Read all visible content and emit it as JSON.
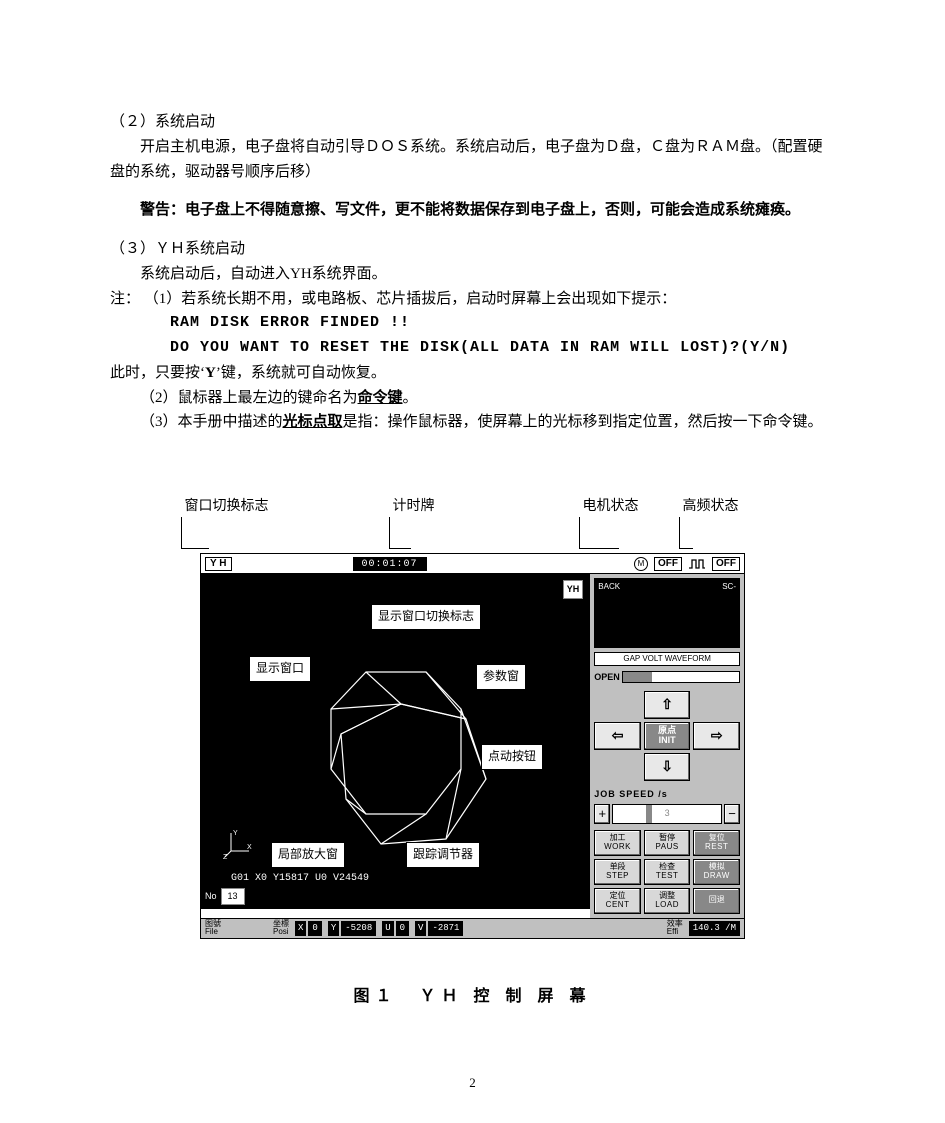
{
  "doc": {
    "s2_head": "（２）系统启动",
    "s2_p1": "开启主机电源，电子盘将自动引导ＤＯＳ系统。系统启动后，电子盘为Ｄ盘，Ｃ盘为ＲＡＭ盘。（配置硬盘的系统，驱动器号顺序后移）",
    "warn": "警告：电子盘上不得随意擦、写文件，更不能将数据保存到电子盘上，否则，可能会造成系统瘫痪。",
    "s3_head": "（３）ＹＨ系统启动",
    "s3_p1": "系统启动后，自动进入YH系统界面。",
    "note_label": "注：",
    "note1": "（1）若系统长期不用，或电路板、芯片插拔后，启动时屏幕上会出现如下提示：",
    "err1": "RAM   DISK   ERROR   FINDED   !!",
    "err2": "DO YOU WANT TO RESET THE DISK(ALL DATA IN RAM WILL LOST)?(Y/N)",
    "s3_p2a": "此时，只要按‘",
    "s3_p2_key": "Y",
    "s3_p2b": "’键，系统就可自动恢复。",
    "note2a": "（2）鼠标器上最左边的键命名为",
    "note2b": "命令键",
    "note2c": "。",
    "note3a": "（3）本手册中描述的",
    "note3b": "光标点取",
    "note3c": "是指：操作鼠标器，使屏幕上的光标移到指定位置，然后按一下命令键。"
  },
  "labels": {
    "l1": "窗口切换标志",
    "l2": "计时牌",
    "l3": "电机状态",
    "l4": "高频状态"
  },
  "canvas_annots": {
    "a1": "显示窗口切换标志",
    "a2": "显示窗口",
    "a3": "参数窗",
    "a4": "点动按钮",
    "a5": "局部放大窗",
    "a6": "跟踪调节器"
  },
  "titlebar": {
    "logo": "Y H",
    "timer": "00:01:07",
    "motor_icon": "M",
    "off1": "OFF",
    "off2": "OFF"
  },
  "canvas": {
    "mini_logo": "YH",
    "code": "G01 X0 Y15817 U0 V24549",
    "no_label": "No",
    "no_value": "13"
  },
  "scope": {
    "back": "BACK",
    "sc": "SC-",
    "waveform": "GAP VOLT WAVEFORM"
  },
  "open": {
    "label": "OPEN"
  },
  "jog": {
    "up": "⇧",
    "down": "⇩",
    "left": "⇦",
    "right": "⇨",
    "init_cn": "原点",
    "init_en": "INIT"
  },
  "speed": {
    "label": "JOB SPEED /s",
    "plus": "+",
    "minus": "−",
    "val": "3"
  },
  "cmds": [
    {
      "cn": "加工",
      "en": "WORK",
      "dark": false
    },
    {
      "cn": "暂停",
      "en": "PAUS",
      "dark": false
    },
    {
      "cn": "复位",
      "en": "REST",
      "dark": true
    },
    {
      "cn": "单段",
      "en": "STEP",
      "dark": false
    },
    {
      "cn": "检查",
      "en": "TEST",
      "dark": false
    },
    {
      "cn": "模拟",
      "en": "DRAW",
      "dark": true
    },
    {
      "cn": "定位",
      "en": "CENT",
      "dark": false
    },
    {
      "cn": "调整",
      "en": "LOAD",
      "dark": false
    },
    {
      "cn": "回退",
      "en": "",
      "dark": true
    }
  ],
  "status": {
    "file_cn": "图號",
    "file_en": "File",
    "posi_cn": "坐標",
    "posi_en": "Posi",
    "x_lbl": "X",
    "x_val": "0",
    "y_lbl": "Y",
    "y_val": "-5208",
    "u_lbl": "U",
    "u_val": "0",
    "v_lbl": "V",
    "v_val": "-2871",
    "eff_cn": "效率",
    "eff_en": "Effi",
    "eff_val": "140.3 /M"
  },
  "caption": "图１　ＹＨ 控 制 屏 幕",
  "pagenum": "2"
}
